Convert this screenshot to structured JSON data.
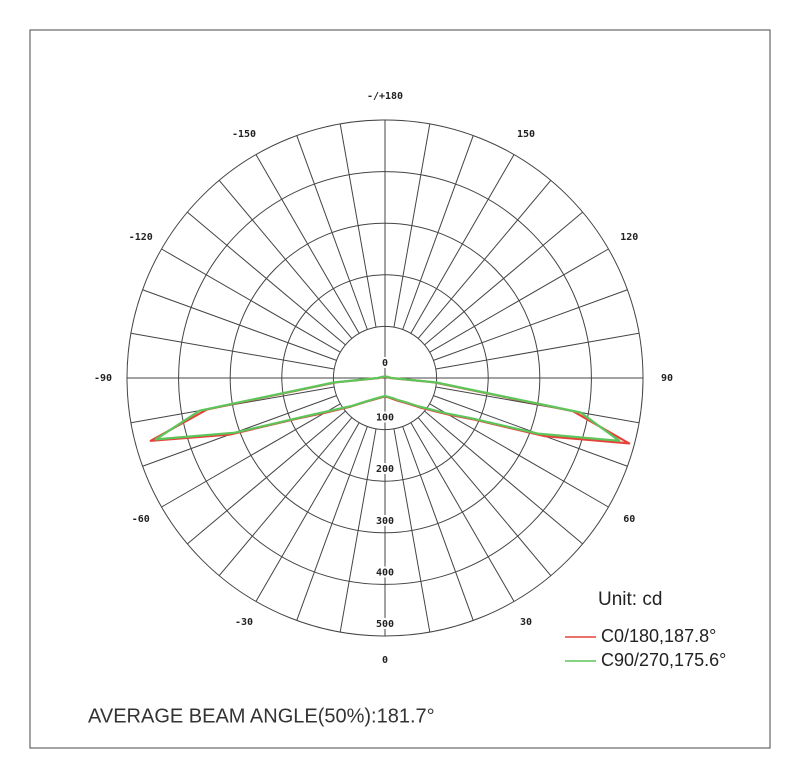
{
  "chart_data": {
    "type": "polar",
    "x": [
      -180,
      -150,
      -120,
      -90,
      -85,
      -80,
      -75,
      -70,
      -65,
      -60,
      -50,
      -40,
      -30,
      -20,
      -10,
      0,
      10,
      20,
      30,
      40,
      50,
      60,
      65,
      70,
      75,
      80,
      85,
      90,
      120,
      150,
      180
    ],
    "series": [
      {
        "name": "C0/180,187.8°",
        "color": "#e5423a",
        "values": [
          3,
          3,
          4,
          12,
          95,
          350,
          470,
          320,
          185,
          135,
          86,
          61,
          49,
          42,
          38,
          36,
          38,
          43,
          51,
          63,
          89,
          142,
          190,
          330,
          490,
          370,
          95,
          11,
          4,
          3,
          3
        ]
      },
      {
        "name": "C90/270,175.6°",
        "color": "#5cc65a",
        "values": [
          3,
          3,
          5,
          14,
          100,
          365,
          460,
          310,
          180,
          130,
          84,
          60,
          48,
          41,
          37,
          35,
          37,
          41,
          49,
          61,
          86,
          137,
          185,
          315,
          470,
          385,
          100,
          13,
          5,
          3,
          3
        ]
      }
    ],
    "rlim": [
      0,
      500
    ],
    "rticks": [
      0,
      100,
      200,
      300,
      400,
      500
    ],
    "xticks": [
      0,
      30,
      60,
      90,
      120,
      150,
      {
        "value": 180,
        "label": "-/+180"
      },
      -150,
      -120,
      -90,
      -60,
      -30
    ],
    "unit_label": "Unit: cd",
    "footnote": "AVERAGE BEAM ANGLE(50%):181.7°"
  }
}
